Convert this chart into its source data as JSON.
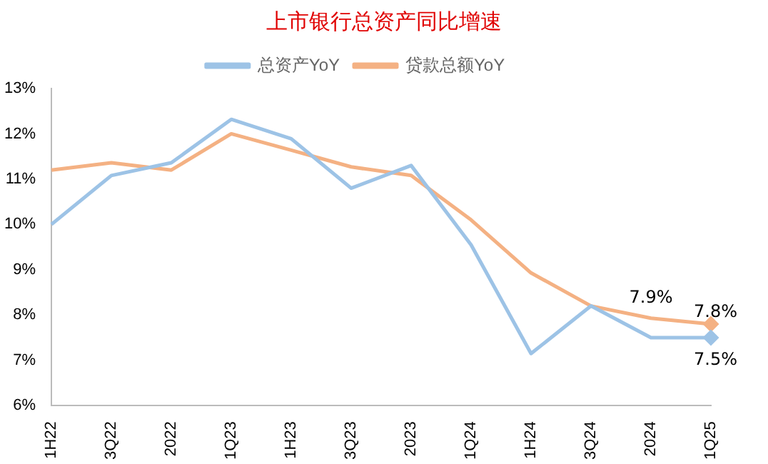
{
  "chart_data": {
    "type": "line",
    "title": "上市银行总资产同比增速",
    "categories": [
      "1H22",
      "3Q22",
      "2022",
      "1Q23",
      "1H23",
      "3Q23",
      "2023",
      "1Q24",
      "1H24",
      "3Q24",
      "2024",
      "1Q25"
    ],
    "series": [
      {
        "name": "总资产YoY",
        "color": "#9dc3e6",
        "values": [
          10.0,
          11.08,
          11.36,
          12.32,
          11.89,
          10.8,
          11.3,
          9.55,
          7.15,
          8.2,
          7.5,
          7.5
        ],
        "value_labels": [
          null,
          null,
          null,
          null,
          null,
          null,
          null,
          null,
          null,
          null,
          null,
          "7.5%"
        ]
      },
      {
        "name": "贷款总额YoY",
        "color": "#f4b183",
        "values": [
          11.2,
          11.36,
          11.2,
          12.0,
          11.64,
          11.27,
          11.08,
          10.1,
          8.93,
          8.2,
          7.93,
          7.8
        ],
        "value_labels": [
          null,
          null,
          null,
          null,
          null,
          null,
          null,
          null,
          null,
          null,
          "7.9%",
          "7.8%"
        ]
      }
    ],
    "ylim": [
      6,
      13
    ],
    "yticks": [
      {
        "value": 6,
        "label": "6%"
      },
      {
        "value": 7,
        "label": "7%"
      },
      {
        "value": 8,
        "label": "8%"
      },
      {
        "value": 9,
        "label": "9%"
      },
      {
        "value": 10,
        "label": "10%"
      },
      {
        "value": 11,
        "label": "11%"
      },
      {
        "value": 12,
        "label": "12%"
      },
      {
        "value": 13,
        "label": "13%"
      }
    ],
    "grid": false,
    "legend": "top"
  }
}
